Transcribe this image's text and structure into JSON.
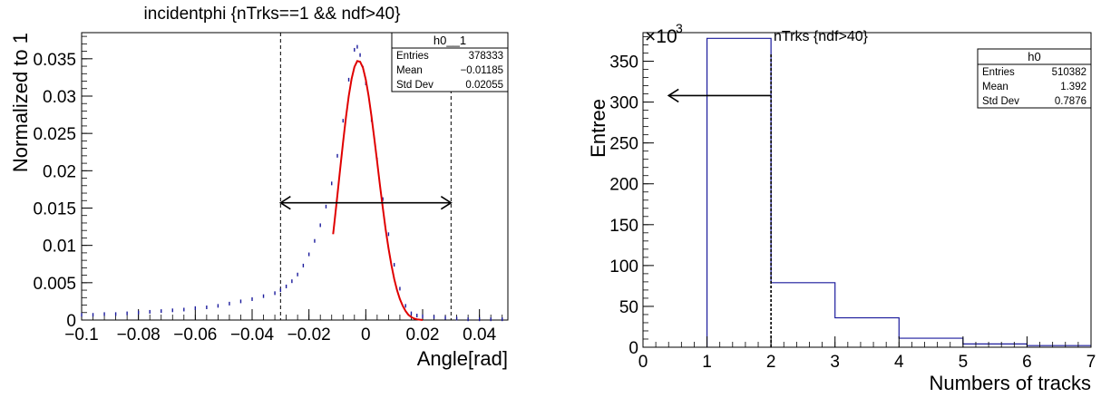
{
  "chart_data": [
    {
      "type": "scatter",
      "title": "incidentphi {nTrks==1 && ndf>40}",
      "xlabel": "Angle[rad]",
      "ylabel": "Normalized to 1",
      "xlim": [
        -0.1,
        0.05
      ],
      "ylim": [
        0,
        0.0385
      ],
      "xticks": [
        -0.1,
        -0.08,
        -0.06,
        -0.04,
        -0.02,
        0,
        0.02,
        0.04
      ],
      "xtick_labels": [
        "−0.1",
        "−0.08",
        "−0.06",
        "−0.04",
        "−0.02",
        "0",
        "0.02",
        "0.04"
      ],
      "yticks": [
        0,
        0.005,
        0.01,
        0.015,
        0.02,
        0.025,
        0.03,
        0.035
      ],
      "ytick_labels": [
        "0",
        "0.005",
        "0.01",
        "0.015",
        "0.02",
        "0.025",
        "0.03",
        "0.035"
      ],
      "grid": false,
      "colors": {
        "data": "#1a1a9c",
        "fit": "#e00000",
        "axis": "#000000"
      },
      "series": [
        {
          "kind": "points",
          "x": [
            -0.1,
            -0.096,
            -0.092,
            -0.088,
            -0.084,
            -0.08,
            -0.076,
            -0.072,
            -0.068,
            -0.064,
            -0.06,
            -0.056,
            -0.052,
            -0.048,
            -0.044,
            -0.04,
            -0.036,
            -0.032,
            -0.03,
            -0.028,
            -0.026,
            -0.024,
            -0.022,
            -0.02,
            -0.018,
            -0.016,
            -0.014,
            -0.012,
            -0.01,
            -0.008,
            -0.006,
            -0.004,
            -0.003,
            -0.002,
            -0.001,
            0,
            0.002,
            0.004,
            0.006,
            0.008,
            0.01,
            0.012,
            0.014,
            0.016,
            0.018,
            0.02,
            0.024,
            0.028,
            0.032,
            0.036,
            0.04,
            0.044,
            0.048
          ],
          "y": [
            0.0007,
            0.0007,
            0.0008,
            0.0008,
            0.0009,
            0.001,
            0.0011,
            0.0012,
            0.0013,
            0.0014,
            0.0016,
            0.0017,
            0.0019,
            0.0022,
            0.0025,
            0.0028,
            0.0032,
            0.0036,
            0.004,
            0.0045,
            0.0052,
            0.0061,
            0.0073,
            0.0088,
            0.0106,
            0.0127,
            0.0152,
            0.0183,
            0.022,
            0.0267,
            0.0322,
            0.0362,
            0.0366,
            0.0355,
            0.0338,
            0.0317,
            0.0268,
            0.0215,
            0.0162,
            0.0115,
            0.0074,
            0.0042,
            0.0019,
            0.0009,
            0.0006,
            0.0005,
            0.0004,
            0.0003,
            0.0002,
            0.0001,
            0.0001,
            0.0001,
            0.0001
          ]
        },
        {
          "kind": "fit",
          "x": [
            -0.0115,
            -0.011,
            -0.01,
            -0.009,
            -0.008,
            -0.007,
            -0.006,
            -0.005,
            -0.004,
            -0.003,
            -0.002,
            -0.001,
            0,
            0.001,
            0.002,
            0.003,
            0.004,
            0.005,
            0.006,
            0.007,
            0.008,
            0.009,
            0.01,
            0.011,
            0.012,
            0.013,
            0.014,
            0.015,
            0.016,
            0.017,
            0.018,
            0.019,
            0.02
          ],
          "y": [
            0.0115,
            0.0132,
            0.0167,
            0.0203,
            0.0238,
            0.0271,
            0.03,
            0.0323,
            0.0339,
            0.0347,
            0.0346,
            0.0338,
            0.0322,
            0.03,
            0.0273,
            0.0243,
            0.0212,
            0.018,
            0.015,
            0.0121,
            0.0096,
            0.0074,
            0.0055,
            0.004,
            0.0028,
            0.0019,
            0.0012,
            0.0007,
            0.0004,
            0.0002,
            0.0001,
            5e-05,
            0.0
          ]
        }
      ],
      "cut_lines_x": [
        -0.03,
        0.03
      ],
      "arrow": {
        "from_x": -0.03,
        "to_x": 0.03,
        "y": 0.0157,
        "direction": "both"
      },
      "stats_box": {
        "title": "h0__1",
        "rows": [
          {
            "label": "Entries",
            "value": "378333"
          },
          {
            "label": "Mean",
            "value": "−0.01185"
          },
          {
            "label": "Std Dev",
            "value": "0.02055"
          }
        ],
        "placement": "top-right"
      }
    },
    {
      "type": "bar",
      "title": "nTrks {ndf>40}",
      "xlabel": "Numbers of tracks",
      "ylabel": "Entree",
      "multiplier": "×10",
      "multiplier_exp": "3",
      "xlim": [
        0,
        7
      ],
      "ylim": [
        0,
        385
      ],
      "xticks": [
        0,
        1,
        2,
        3,
        4,
        5,
        6,
        7
      ],
      "xtick_labels": [
        "0",
        "1",
        "2",
        "3",
        "4",
        "5",
        "6",
        "7"
      ],
      "yticks": [
        0,
        50,
        100,
        150,
        200,
        250,
        300,
        350
      ],
      "ytick_labels": [
        "0",
        "50",
        "100",
        "150",
        "200",
        "250",
        "300",
        "350"
      ],
      "grid": false,
      "colors": {
        "hist": "#1a1a9c",
        "axis": "#000000"
      },
      "bins": [
        {
          "lo": 1,
          "hi": 2,
          "value": 378
        },
        {
          "lo": 2,
          "hi": 3,
          "value": 79
        },
        {
          "lo": 3,
          "hi": 4,
          "value": 36
        },
        {
          "lo": 4,
          "hi": 5,
          "value": 11
        },
        {
          "lo": 5,
          "hi": 6,
          "value": 4
        },
        {
          "lo": 6,
          "hi": 7,
          "value": 2
        }
      ],
      "cut_line_x": 2,
      "arrow": {
        "from_x": 2,
        "to_x": 0.4,
        "y": 308,
        "direction": "left"
      },
      "stats_box": {
        "title": "h0",
        "rows": [
          {
            "label": "Entries",
            "value": "510382"
          },
          {
            "label": "Mean",
            "value": "1.392"
          },
          {
            "label": "Std Dev",
            "value": "0.7876"
          }
        ],
        "placement": "top-right"
      }
    }
  ]
}
